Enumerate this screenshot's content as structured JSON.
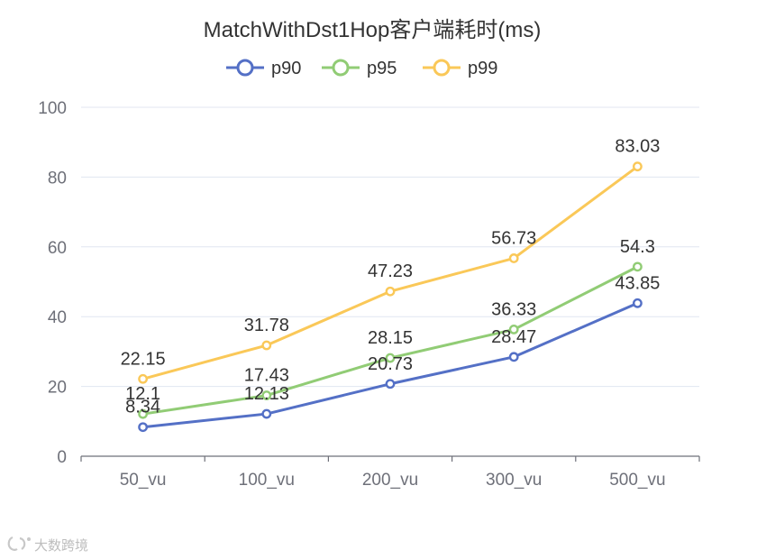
{
  "chart_data": {
    "type": "line",
    "title": "MatchWithDst1Hop客户端耗时(ms)",
    "categories": [
      "50_vu",
      "100_vu",
      "200_vu",
      "300_vu",
      "500_vu"
    ],
    "series": [
      {
        "name": "p90",
        "color": "#5470c6",
        "values": [
          8.34,
          12.13,
          20.73,
          28.47,
          43.85
        ]
      },
      {
        "name": "p95",
        "color": "#91cc75",
        "values": [
          12.1,
          17.43,
          28.15,
          36.33,
          54.3
        ]
      },
      {
        "name": "p99",
        "color": "#fac858",
        "values": [
          22.15,
          31.78,
          47.23,
          56.73,
          83.03
        ]
      }
    ],
    "ylim": [
      0,
      100
    ],
    "yticks": [
      0,
      20,
      40,
      60,
      80,
      100
    ],
    "grid": true,
    "legend": "top-center",
    "xlabel": "",
    "ylabel": ""
  },
  "watermark": {
    "text": "大数跨境",
    "icon": "logo-icon"
  }
}
